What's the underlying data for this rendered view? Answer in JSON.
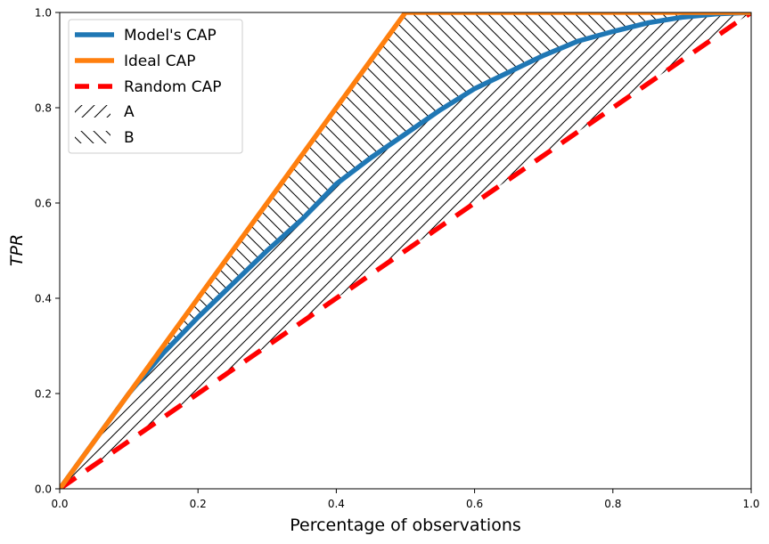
{
  "chart_data": {
    "type": "line",
    "xlabel": "Percentage of observations",
    "ylabel": "TPR",
    "xlim": [
      0.0,
      1.0
    ],
    "ylim": [
      0.0,
      1.0
    ],
    "xticks": [
      "0.0",
      "0.2",
      "0.4",
      "0.6",
      "0.8",
      "1.0"
    ],
    "yticks": [
      "0.0",
      "0.2",
      "0.4",
      "0.6",
      "0.8",
      "1.0"
    ],
    "grid": false,
    "legend_position": "top-left",
    "series": [
      {
        "name": "Model's CAP",
        "color": "#1f77b4",
        "style": "solid",
        "x": [
          0.0,
          0.05,
          0.1,
          0.15,
          0.2,
          0.25,
          0.3,
          0.35,
          0.4,
          0.45,
          0.5,
          0.55,
          0.6,
          0.65,
          0.7,
          0.75,
          0.8,
          0.85,
          0.9,
          0.95,
          1.0
        ],
        "y": [
          0.0,
          0.1,
          0.2,
          0.285,
          0.36,
          0.43,
          0.5,
          0.565,
          0.64,
          0.695,
          0.745,
          0.795,
          0.84,
          0.875,
          0.91,
          0.94,
          0.96,
          0.978,
          0.99,
          0.997,
          1.0
        ]
      },
      {
        "name": "Ideal CAP",
        "color": "#ff7f0e",
        "style": "solid",
        "x": [
          0.0,
          0.5,
          1.0
        ],
        "y": [
          0.0,
          1.0,
          1.0
        ]
      },
      {
        "name": "Random CAP",
        "color": "#ff0000",
        "style": "dashed",
        "x": [
          0.0,
          1.0
        ],
        "y": [
          0.0,
          1.0
        ]
      }
    ],
    "hatched_areas": [
      {
        "name": "A",
        "between": [
          "Random CAP",
          "Model's CAP"
        ],
        "hatch": "/"
      },
      {
        "name": "B",
        "between": [
          "Model's CAP",
          "Ideal CAP"
        ],
        "hatch": "\\"
      }
    ],
    "legend": [
      "Model's CAP",
      "Ideal CAP",
      "Random CAP",
      "A",
      "B"
    ]
  }
}
